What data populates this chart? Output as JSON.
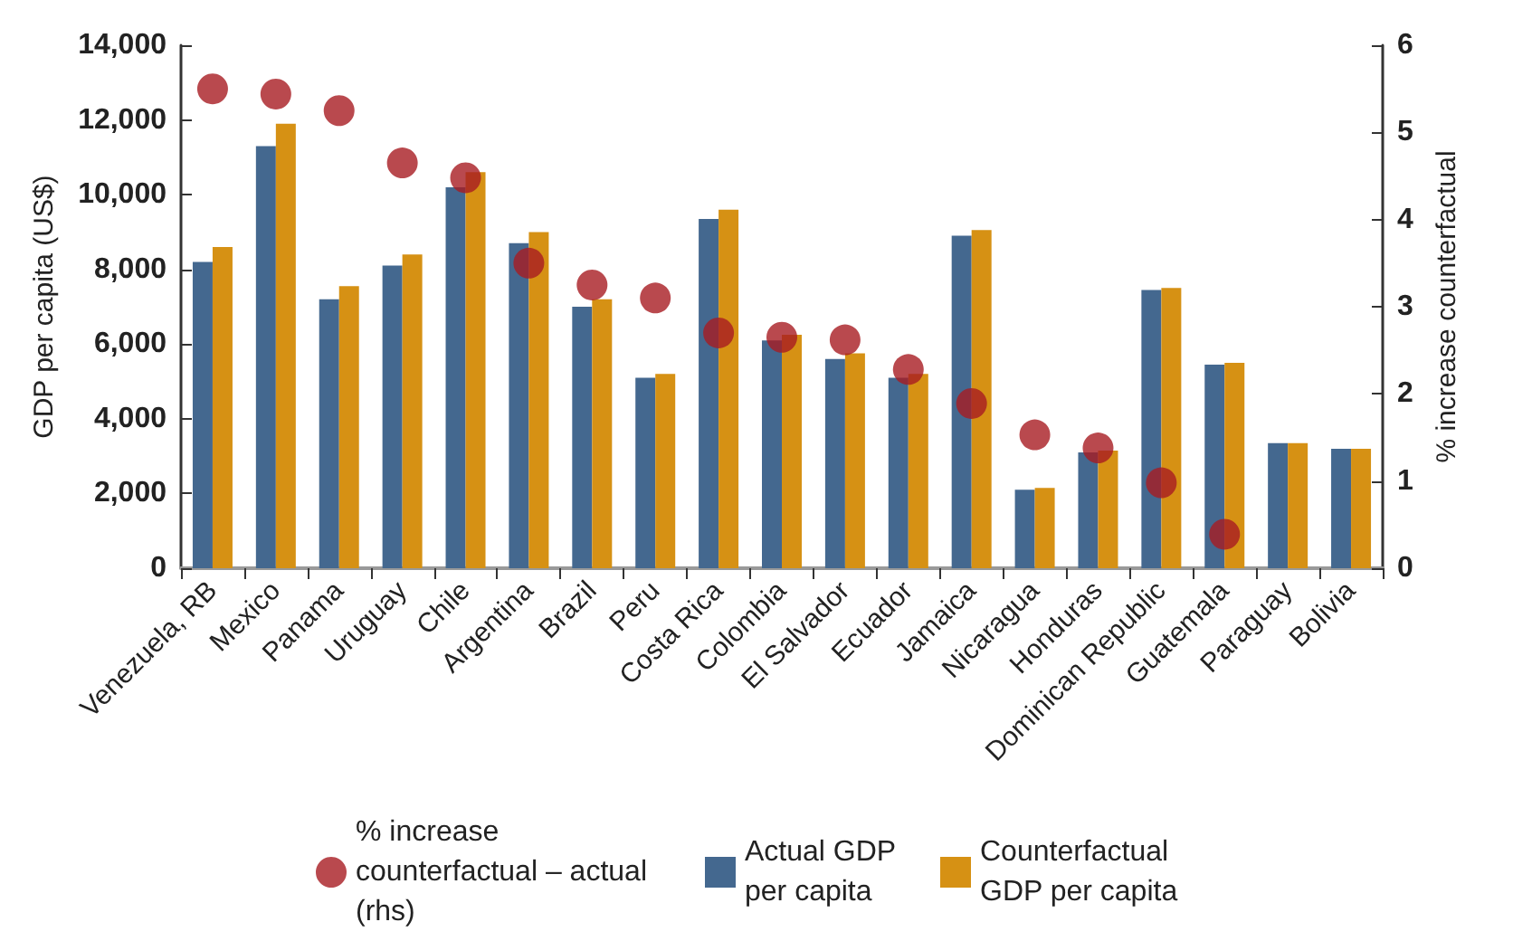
{
  "chart_data": {
    "type": "bar",
    "ylabel": "GDP per capita (US$)",
    "y2label": "% increase counterfactual",
    "categories": [
      "Venezuela, RB",
      "Mexico",
      "Panama",
      "Uruguay",
      "Chile",
      "Argentina",
      "Brazil",
      "Peru",
      "Costa Rica",
      "Colombia",
      "El Salvador",
      "Ecuador",
      "Jamaica",
      "Nicaragua",
      "Honduras",
      "Dominican Republic",
      "Guatemala",
      "Paraguay",
      "Bolivia"
    ],
    "series": [
      {
        "name": "% increase counterfactual – actual (rhs)",
        "type": "scatter",
        "axis": "y2",
        "color": "#a81c22",
        "values": [
          5.5,
          5.44,
          5.25,
          4.65,
          4.48,
          3.5,
          3.25,
          3.1,
          2.7,
          2.65,
          2.62,
          2.28,
          1.89,
          1.53,
          1.38,
          0.98,
          0.39,
          null,
          null
        ]
      },
      {
        "name": "Actual GDP per capita",
        "color": "#44688f",
        "values": [
          8200,
          11300,
          7200,
          8100,
          10200,
          8700,
          7000,
          5100,
          9350,
          6100,
          5600,
          5100,
          8900,
          2100,
          3100,
          7450,
          5450,
          3350,
          3200
        ]
      },
      {
        "name": "Counterfactual GDP per capita",
        "color": "#d69114",
        "values": [
          8600,
          11900,
          7550,
          8400,
          10600,
          9000,
          7200,
          5200,
          9600,
          6250,
          5750,
          5200,
          9050,
          2150,
          3150,
          7500,
          5500,
          3350,
          3200
        ]
      }
    ],
    "ylim": [
      0,
      14000
    ],
    "yticks": [
      0,
      {
        "value": 2000,
        "label": "2,000"
      },
      {
        "value": 4000,
        "label": "4,000"
      },
      {
        "value": 6000,
        "label": "6,000"
      },
      {
        "value": 8000,
        "label": "8,000"
      },
      {
        "value": 10000,
        "label": "10,000"
      },
      {
        "value": 12000,
        "label": "12,000"
      },
      {
        "value": 14000,
        "label": "14,000"
      }
    ],
    "y2lim": [
      0,
      6
    ],
    "y2ticks": [
      0,
      1,
      2,
      3,
      4,
      5,
      6
    ],
    "marker": "circle",
    "grid": false,
    "legend": "bottom"
  }
}
